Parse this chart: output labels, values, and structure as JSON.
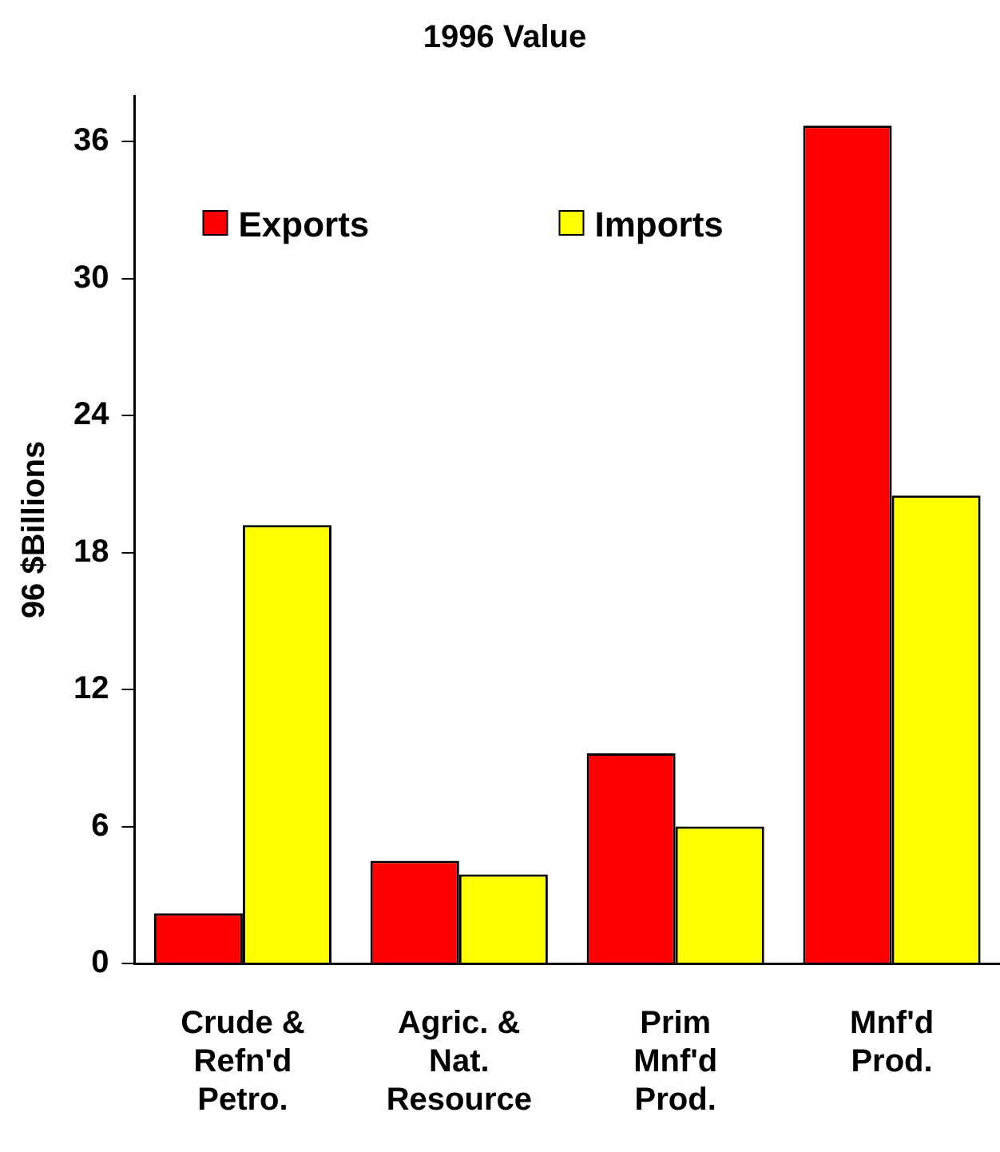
{
  "chart_data": {
    "type": "bar",
    "title": "1996 Value",
    "ylabel": "96 $Billions",
    "categories": [
      "Crude & Refn'd Petro.",
      "Agric. & Nat. Resource",
      "Prim Mnf'd Prod.",
      "Mnf'd Prod."
    ],
    "series": [
      {
        "name": "Exports",
        "color": "#ff0000",
        "values": [
          2.2,
          4.5,
          9.2,
          36.7
        ]
      },
      {
        "name": "Imports",
        "color": "#ffff00",
        "values": [
          19.2,
          3.9,
          6.0,
          20.5
        ]
      }
    ],
    "ylim": [
      0,
      38
    ],
    "yticks": [
      0,
      6,
      12,
      18,
      24,
      30,
      36
    ],
    "grid": false,
    "legend": "top left"
  }
}
